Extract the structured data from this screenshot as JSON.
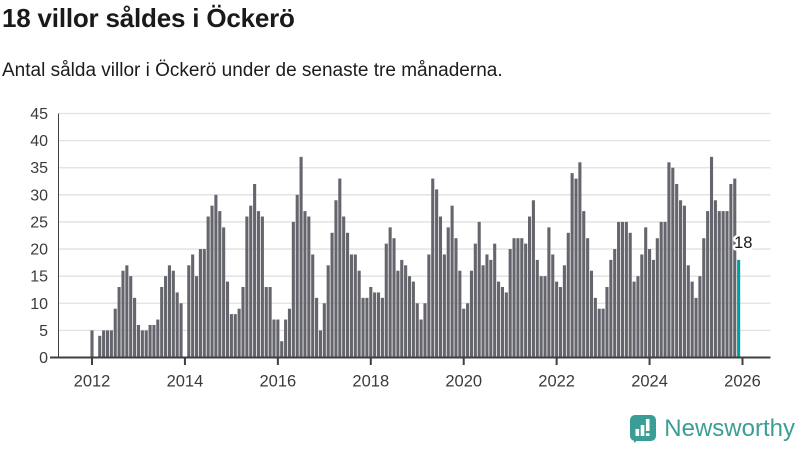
{
  "header": {
    "title": "18 villor såldes i Öckerö",
    "subtitle": "Antal sålda villor i Öckerö under de senaste tre månaderna."
  },
  "chart_data": {
    "type": "bar",
    "title": "18 villor såldes i Öckerö",
    "subtitle": "Antal sålda villor i Öckerö under de senaste tre månaderna.",
    "ylabel": "",
    "xlabel": "",
    "frequency": "monthly",
    "x_start": "2012-01",
    "x_end": "2025-12",
    "x_tick_labels": [
      "2012",
      "2014",
      "2016",
      "2018",
      "2020",
      "2022",
      "2024",
      "2026"
    ],
    "y_ticks": [
      0,
      5,
      10,
      15,
      20,
      25,
      30,
      35,
      40,
      45
    ],
    "ylim": [
      0,
      45
    ],
    "grid": true,
    "values": [
      5,
      0,
      4,
      5,
      5,
      5,
      9,
      13,
      16,
      17,
      15,
      11,
      6,
      5,
      5,
      6,
      6,
      7,
      13,
      15,
      17,
      16,
      12,
      10,
      0,
      17,
      19,
      15,
      20,
      20,
      26,
      28,
      30,
      27,
      24,
      14,
      8,
      8,
      9,
      13,
      26,
      28,
      32,
      27,
      26,
      13,
      13,
      7,
      7,
      3,
      7,
      9,
      25,
      30,
      37,
      27,
      26,
      19,
      11,
      5,
      10,
      17,
      23,
      29,
      33,
      26,
      23,
      19,
      19,
      16,
      11,
      11,
      13,
      12,
      12,
      11,
      21,
      24,
      22,
      16,
      18,
      17,
      15,
      14,
      10,
      7,
      10,
      19,
      33,
      31,
      26,
      19,
      24,
      28,
      22,
      16,
      9,
      10,
      16,
      21,
      25,
      17,
      19,
      18,
      21,
      14,
      13,
      12,
      20,
      22,
      22,
      22,
      21,
      26,
      29,
      18,
      15,
      15,
      24,
      19,
      14,
      13,
      17,
      23,
      34,
      33,
      36,
      27,
      22,
      16,
      11,
      9,
      9,
      13,
      18,
      20,
      25,
      25,
      25,
      23,
      14,
      15,
      19,
      24,
      20,
      18,
      22,
      25,
      25,
      36,
      35,
      32,
      29,
      28,
      17,
      14,
      11,
      15,
      22,
      27,
      37,
      29,
      27,
      27,
      27,
      32,
      33,
      18
    ],
    "highlight": {
      "index": 167,
      "value": 18,
      "label": "18",
      "color": "#00a0a0"
    },
    "colors": {
      "bar": "#65656d",
      "highlight_bar": "#00a0a0",
      "gridline": "#e1e1e1",
      "axis": "#3f3f3f",
      "tick_label": "#3b3b3b",
      "annotation_text": "#1a1a1a"
    }
  },
  "branding": {
    "logo_text": "Newsworthy",
    "logo_color": "#3b9e96",
    "logo_icon": "bar-chart-speech-bubble-icon"
  }
}
